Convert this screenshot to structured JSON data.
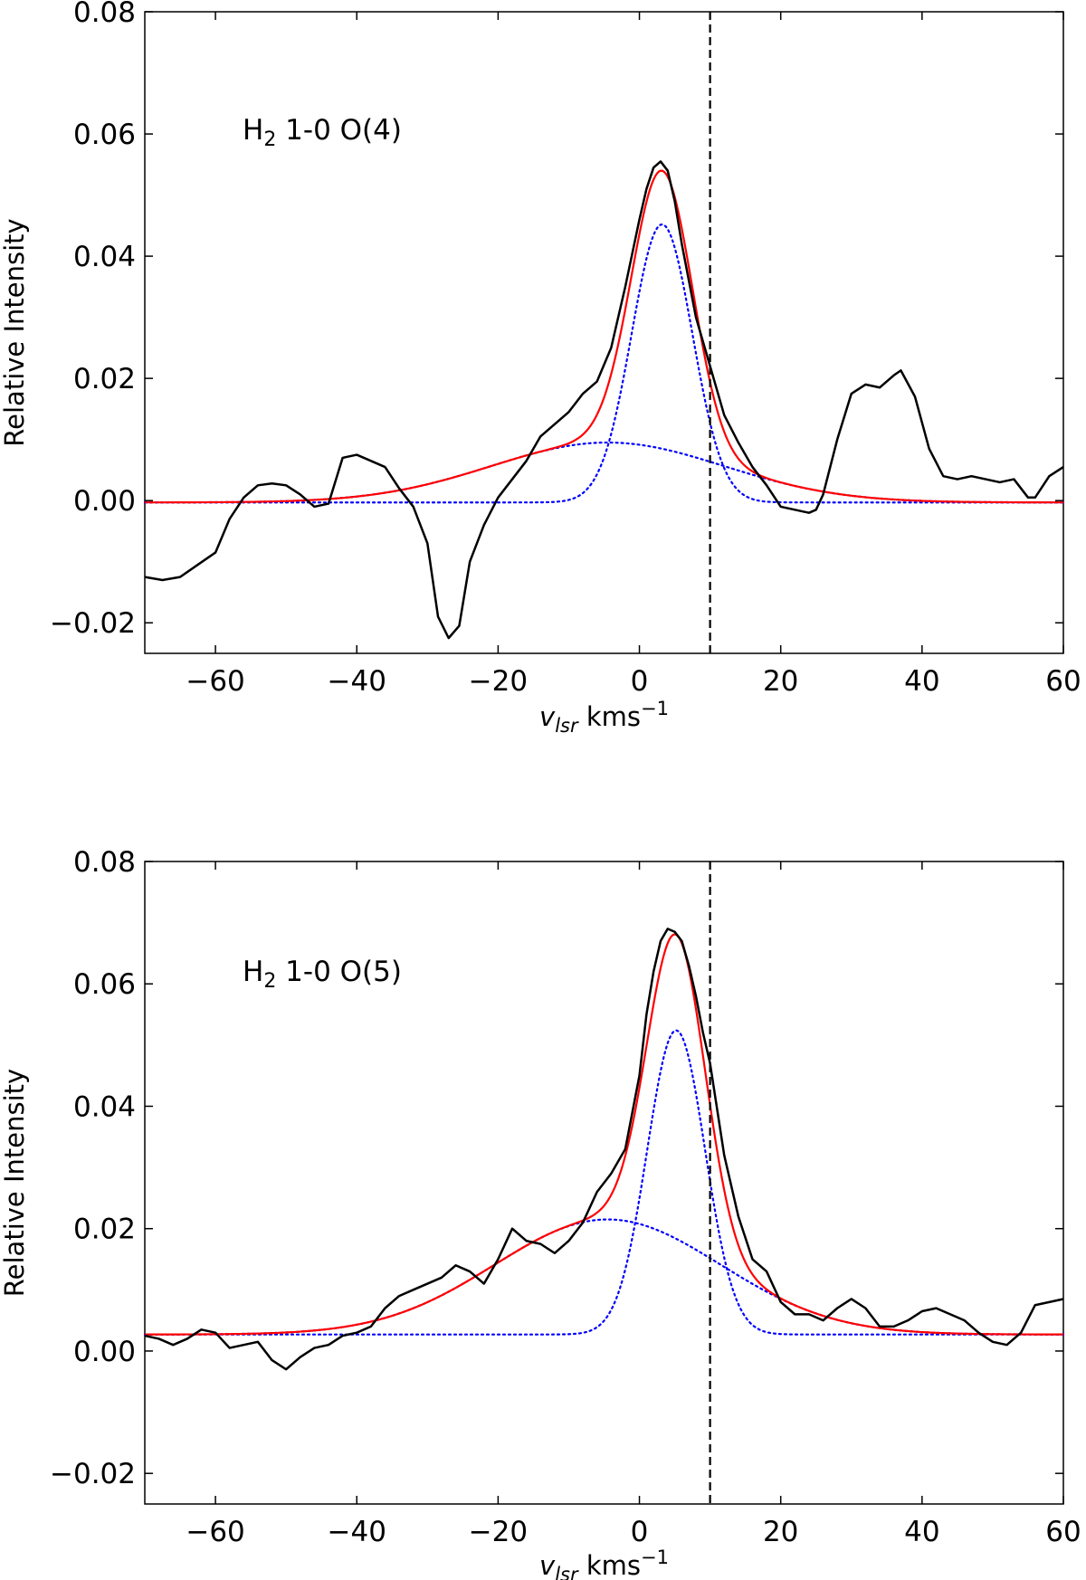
{
  "chart_data": [
    {
      "type": "line",
      "annotation": {
        "prefix": "H",
        "sub": "2",
        "suffix": " 1-0 O(4)"
      },
      "xlabel": {
        "var": "v",
        "sub": "lsr",
        "unit": " kms",
        "sup": "−1"
      },
      "ylabel": "Relative Intensity",
      "xlim": [
        -70,
        60
      ],
      "ylim": [
        -0.025,
        0.08
      ],
      "xticks": [
        -60,
        -40,
        -20,
        0,
        20,
        40,
        60
      ],
      "yticks": [
        -0.02,
        0.0,
        0.02,
        0.04,
        0.06,
        0.08
      ],
      "xtick_labels": [
        "−60",
        "−40",
        "−20",
        "0",
        "20",
        "40",
        "60"
      ],
      "ytick_labels": [
        "−0.02",
        "0.00",
        "0.02",
        "0.04",
        "0.06",
        "0.08"
      ],
      "vline": 10,
      "fit_params": {
        "baseline": -0.0003,
        "narrow": {
          "amp": 0.0455,
          "center": 3.2,
          "sigma": 4.3
        },
        "broad": {
          "amp": 0.0098,
          "center": -4.5,
          "sigma": 16.5
        }
      },
      "series": [
        {
          "name": "observed",
          "color": "#000000",
          "x": [
            -70,
            -67.5,
            -65,
            -62.5,
            -60,
            -58,
            -56,
            -54,
            -52,
            -50,
            -48,
            -46,
            -44,
            -42,
            -40,
            -38,
            -36,
            -34,
            -32,
            -30,
            -28.5,
            -27,
            -25.5,
            -24,
            -22,
            -20,
            -18,
            -16,
            -14,
            -12,
            -10,
            -8,
            -6,
            -4,
            -2,
            0,
            1,
            2,
            3,
            4,
            5,
            6,
            7,
            8,
            9,
            10,
            12,
            14,
            16,
            18,
            20,
            22,
            24,
            25,
            26,
            28,
            30,
            32,
            34,
            36,
            37,
            39,
            41,
            43,
            45,
            47,
            49,
            51,
            53,
            55,
            56,
            58,
            60
          ],
          "y": [
            -0.0125,
            -0.013,
            -0.0125,
            -0.0105,
            -0.0085,
            -0.003,
            0.0005,
            0.0025,
            0.0028,
            0.0025,
            0.001,
            -0.001,
            -0.0005,
            0.007,
            0.0075,
            0.0065,
            0.0055,
            0.002,
            -0.001,
            -0.007,
            -0.019,
            -0.0225,
            -0.0205,
            -0.01,
            -0.004,
            0.0005,
            0.0035,
            0.0065,
            0.0105,
            0.0125,
            0.0145,
            0.0175,
            0.0195,
            0.025,
            0.035,
            0.046,
            0.051,
            0.0545,
            0.0555,
            0.054,
            0.049,
            0.042,
            0.036,
            0.03,
            0.026,
            0.022,
            0.014,
            0.0095,
            0.0055,
            0.0025,
            -0.001,
            -0.0015,
            -0.002,
            -0.0015,
            0.001,
            0.01,
            0.0175,
            0.019,
            0.0185,
            0.0205,
            0.0213,
            0.017,
            0.0085,
            0.004,
            0.0035,
            0.004,
            0.0035,
            0.003,
            0.0035,
            0.0005,
            0.0005,
            0.004,
            0.0055
          ]
        },
        {
          "name": "total fit",
          "color": "#ff0000",
          "kind": "fit-total"
        },
        {
          "name": "narrow component",
          "color": "#0000ff",
          "kind": "fit-narrow"
        },
        {
          "name": "broad component",
          "color": "#0000ff",
          "kind": "fit-broad"
        }
      ]
    },
    {
      "type": "line",
      "annotation": {
        "prefix": "H",
        "sub": "2",
        "suffix": " 1-0 O(5)"
      },
      "xlabel": {
        "var": "v",
        "sub": "lsr",
        "unit": " kms",
        "sup": "−1"
      },
      "ylabel": "Relative Intensity",
      "xlim": [
        -70,
        60
      ],
      "ylim": [
        -0.025,
        0.08
      ],
      "xticks": [
        -60,
        -40,
        -20,
        0,
        20,
        40,
        60
      ],
      "yticks": [
        -0.02,
        0.0,
        0.02,
        0.04,
        0.06,
        0.08
      ],
      "xtick_labels": [
        "−60",
        "−40",
        "−20",
        "0",
        "20",
        "40",
        "60"
      ],
      "ytick_labels": [
        "−0.02",
        "0.00",
        "0.02",
        "0.04",
        "0.06",
        "0.08"
      ],
      "vline": 10,
      "fit_params": {
        "baseline": 0.0027,
        "narrow": {
          "amp": 0.0497,
          "center": 5.2,
          "sigma": 4.1
        },
        "broad": {
          "amp": 0.0188,
          "center": -4.5,
          "sigma": 16.0
        }
      },
      "series": [
        {
          "name": "observed",
          "color": "#000000",
          "x": [
            -70,
            -68,
            -66,
            -64,
            -62,
            -60,
            -58,
            -56,
            -54,
            -52,
            -50,
            -48,
            -46,
            -44,
            -42,
            -40,
            -38,
            -36,
            -34,
            -32,
            -30,
            -28,
            -26,
            -24,
            -22,
            -20,
            -18,
            -16,
            -14,
            -12,
            -10,
            -8,
            -6,
            -4,
            -2,
            0,
            1,
            2,
            3,
            4,
            5,
            6,
            7,
            8,
            9,
            10,
            12,
            14,
            16,
            18,
            20,
            22,
            24,
            26,
            28,
            30,
            32,
            34,
            36,
            38,
            40,
            42,
            44,
            46,
            48,
            50,
            52,
            54,
            56,
            58,
            60
          ],
          "y": [
            0.0025,
            0.002,
            0.001,
            0.002,
            0.0035,
            0.003,
            0.0005,
            0.001,
            0.0015,
            -0.0015,
            -0.003,
            -0.001,
            0.0005,
            0.001,
            0.0025,
            0.003,
            0.004,
            0.007,
            0.009,
            0.01,
            0.011,
            0.012,
            0.014,
            0.013,
            0.011,
            0.015,
            0.02,
            0.018,
            0.0175,
            0.016,
            0.018,
            0.021,
            0.026,
            0.029,
            0.033,
            0.045,
            0.055,
            0.062,
            0.067,
            0.069,
            0.0685,
            0.067,
            0.063,
            0.058,
            0.052,
            0.047,
            0.032,
            0.022,
            0.015,
            0.013,
            0.008,
            0.006,
            0.006,
            0.005,
            0.007,
            0.0085,
            0.007,
            0.004,
            0.004,
            0.005,
            0.0065,
            0.007,
            0.006,
            0.005,
            0.003,
            0.0015,
            0.001,
            0.003,
            0.0075,
            0.008,
            0.0085
          ]
        },
        {
          "name": "total fit",
          "color": "#ff0000",
          "kind": "fit-total"
        },
        {
          "name": "narrow component",
          "color": "#0000ff",
          "kind": "fit-narrow"
        },
        {
          "name": "broad component",
          "color": "#0000ff",
          "kind": "fit-broad"
        }
      ]
    }
  ]
}
